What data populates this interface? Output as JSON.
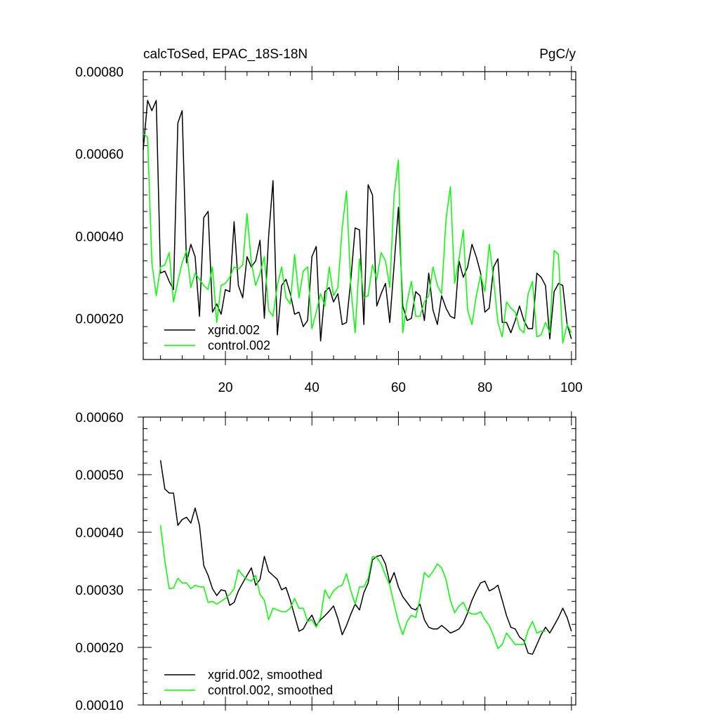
{
  "chart_data": [
    {
      "type": "line",
      "title": "calcToSed, EPAC_18S-18N",
      "units": "PgC/y",
      "xlim": [
        1,
        101
      ],
      "ylim": [
        0.0001,
        0.0008
      ],
      "xticks": [
        20,
        40,
        60,
        80,
        100
      ],
      "yticks": [
        0.0002,
        0.0004,
        0.0006,
        0.0008
      ],
      "ytick_labels": [
        "0.00020",
        "0.00040",
        "0.00060",
        "0.00080"
      ],
      "xtick_labels": [
        "20",
        "40",
        "60",
        "80",
        "100"
      ],
      "legend": "bottom-left",
      "series": [
        {
          "name": "xgrid.002",
          "color": "#000000",
          "values": [
            0.00061,
            0.00073,
            0.000705,
            0.00073,
            0.00031,
            0.000315,
            0.00029,
            0.00027,
            0.000675,
            0.000705,
            0.000335,
            0.00038,
            0.00035,
            0.000205,
            0.000445,
            0.00046,
            0.000215,
            0.000235,
            0.00021,
            0.00027,
            0.000265,
            0.000435,
            0.00028,
            0.00025,
            0.00035,
            0.000325,
            0.00034,
            0.00039,
            0.0002,
            0.0004,
            0.000535,
            0.00016,
            0.00028,
            0.000295,
            0.00026,
            0.00021,
            0.000215,
            0.00018,
            0.000195,
            0.00035,
            0.000375,
            0.000145,
            0.000265,
            0.000275,
            0.00024,
            0.00026,
            0.000185,
            0.00019,
            0.000295,
            0.00042,
            0.000415,
            0.000185,
            0.000525,
            0.0005,
            0.00023,
            0.00026,
            0.000285,
            0.00019,
            0.00033,
            0.00047,
            0.00023,
            0.000195,
            0.0002,
            0.000265,
            0.000255,
            0.000195,
            0.00031,
            0.00022,
            0.000185,
            0.000255,
            0.000225,
            0.000205,
            0.0002,
            0.00034,
            0.0003,
            0.000325,
            0.00038,
            0.00035,
            0.00031,
            0.000215,
            0.000225,
            0.000325,
            0.000345,
            0.00019,
            0.00019,
            0.000165,
            0.000195,
            0.00023,
            0.000195,
            0.000175,
            0.000175,
            0.00031,
            0.0003,
            0.00028,
            0.00015,
            0.000265,
            0.000285,
            0.00028,
            0.000185,
            0.00015
          ]
        },
        {
          "name": "control.002",
          "color": "#00ff00",
          "values": [
            0.00065,
            0.00064,
            0.000335,
            0.000255,
            0.000325,
            0.00033,
            0.00036,
            0.00024,
            0.00029,
            0.000335,
            0.000365,
            0.000275,
            0.00031,
            0.000295,
            0.00028,
            0.00027,
            0.000325,
            0.00019,
            0.00028,
            0.000285,
            0.0003,
            0.000325,
            0.00032,
            0.00033,
            0.000455,
            0.000335,
            0.00028,
            0.00031,
            0.00035,
            0.00022,
            0.000205,
            0.00028,
            0.000325,
            0.00025,
            0.000235,
            0.000355,
            0.00025,
            0.000315,
            0.000325,
            0.000175,
            0.000215,
            0.00026,
            0.00023,
            0.000325,
            0.000255,
            0.000275,
            0.00042,
            0.00051,
            0.000275,
            0.000165,
            0.000345,
            0.00025,
            0.000255,
            0.00033,
            0.000295,
            0.00036,
            0.00034,
            0.000275,
            0.0005,
            0.000585,
            0.000165,
            0.00024,
            0.00029,
            0.000205,
            0.000205,
            0.00024,
            0.000255,
            0.000325,
            0.00028,
            0.00026,
            0.00044,
            0.00052,
            0.000285,
            0.000345,
            0.000415,
            0.00022,
            0.000185,
            0.000255,
            0.000305,
            0.000265,
            0.00038,
            0.000295,
            0.00019,
            0.000155,
            0.00024,
            0.000225,
            0.000215,
            0.000175,
            0.000165,
            0.00026,
            0.00029,
            0.000155,
            0.00016,
            0.00019,
            0.000165,
            0.000365,
            0.000355,
            0.00014,
            0.000185,
            0.000165
          ]
        }
      ]
    },
    {
      "type": "line",
      "xlim": [
        1,
        101
      ],
      "ylim": [
        0.0001,
        0.0006
      ],
      "xticks": [
        20,
        40,
        60,
        80,
        100
      ],
      "yticks": [
        0.0001,
        0.0002,
        0.0003,
        0.0004,
        0.0005,
        0.0006
      ],
      "ytick_labels": [
        "0.00010",
        "0.00020",
        "0.00030",
        "0.00040",
        "0.00050",
        "0.00060"
      ],
      "legend": "bottom-left",
      "series": [
        {
          "name": "xgrid.002, smoothed",
          "color": "#000000",
          "x_start": 5,
          "values": [
            0.000525,
            0.000475,
            0.000468,
            0.000468,
            0.000412,
            0.000422,
            0.000426,
            0.000416,
            0.000442,
            0.000412,
            0.000342,
            0.000325,
            0.000302,
            0.00029,
            0.0003,
            0.000298,
            0.000273,
            0.000278,
            0.000298,
            0.000312,
            0.000325,
            0.000338,
            0.000308,
            0.000318,
            0.000358,
            0.000332,
            0.000325,
            0.000318,
            0.0003,
            0.000304,
            0.000282,
            0.000255,
            0.000228,
            0.000232,
            0.000246,
            0.000256,
            0.000238,
            0.000248,
            0.000255,
            0.000263,
            0.000272,
            0.00025,
            0.000222,
            0.000238,
            0.000258,
            0.000275,
            0.000265,
            0.000295,
            0.000312,
            0.000352,
            0.000358,
            0.00036,
            0.000345,
            0.000312,
            0.00033,
            0.000305,
            0.000288,
            0.000278,
            0.000268,
            0.000265,
            0.000275,
            0.000248,
            0.000235,
            0.000232,
            0.000232,
            0.000238,
            0.000232,
            0.000225,
            0.000228,
            0.000232,
            0.000242,
            0.00026,
            0.000282,
            0.000298,
            0.000312,
            0.000315,
            0.000298,
            0.000302,
            0.000308,
            0.000282,
            0.000255,
            0.000235,
            0.000232,
            0.000218,
            0.000212,
            0.00019,
            0.000188,
            0.000205,
            0.000222,
            0.000235,
            0.000225,
            0.000238,
            0.000252,
            0.000268,
            0.000252,
            0.000228
          ]
        },
        {
          "name": "control.002, smoothed",
          "color": "#00ff00",
          "x_start": 5,
          "values": [
            0.000412,
            0.00035,
            0.000302,
            0.000303,
            0.00032,
            0.000312,
            0.000312,
            0.000302,
            0.000308,
            0.000305,
            0.000305,
            0.000278,
            0.00028,
            0.000275,
            0.00028,
            0.000285,
            0.000292,
            0.000302,
            0.000335,
            0.000325,
            0.000318,
            0.000315,
            0.000325,
            0.000292,
            0.000282,
            0.000248,
            0.000268,
            0.000265,
            0.000262,
            0.000262,
            0.000268,
            0.000285,
            0.000268,
            0.000268,
            0.000245,
            0.000248,
            0.000235,
            0.000252,
            0.0003,
            0.000285,
            0.000298,
            0.000305,
            0.000308,
            0.000328,
            0.000298,
            0.000275,
            0.000305,
            0.000305,
            0.00032,
            0.000358,
            0.000356,
            0.000345,
            0.000325,
            0.000308,
            0.000275,
            0.000245,
            0.000222,
            0.000245,
            0.000256,
            0.000252,
            0.000285,
            0.00033,
            0.000322,
            0.000332,
            0.000345,
            0.000338,
            0.000318,
            0.000282,
            0.00026,
            0.000272,
            0.000278,
            0.000262,
            0.000258,
            0.000258,
            0.000262,
            0.000248,
            0.000238,
            0.00022,
            0.000198,
            0.000205,
            0.000225,
            0.000215,
            0.000205,
            0.000205,
            0.000205,
            0.00023,
            0.000245,
            0.000225,
            0.000228,
            0.000228
          ]
        }
      ]
    }
  ]
}
